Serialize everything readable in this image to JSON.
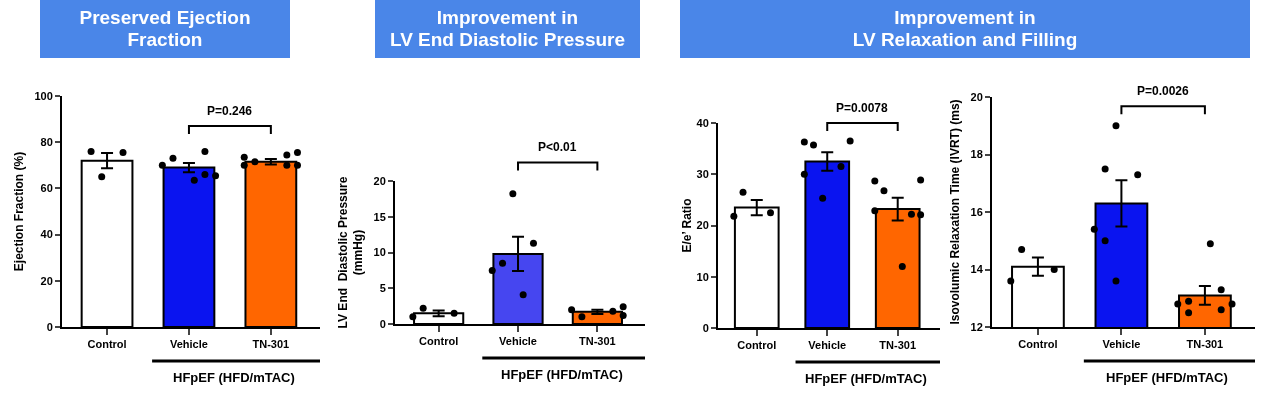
{
  "chart_data": [
    {
      "type": "bar",
      "title": "Preserved Ejection\nFraction",
      "ylabel": "Ejection Fraction (%)",
      "categories": [
        "Control",
        "Vehicle",
        "TN-301"
      ],
      "values": [
        72,
        69,
        71.5
      ],
      "colors": [
        "#ffffff",
        "#0a14f0",
        "#ff6600"
      ],
      "errors": [
        3.3,
        2,
        1.2
      ],
      "series": [
        {
          "type": "scatter",
          "x": [
            "Vehicle",
            "TN-301",
            "TN-301"
          ],
          "values": [
            70,
            73.5,
            70
          ],
          "color": "#000000"
        },
        {
          "type": "scatter",
          "x": [
            "Control",
            "Vehicle",
            "TN-301"
          ],
          "values": [
            76,
            73,
            71.5
          ],
          "color": "#000000"
        },
        {
          "type": "scatter",
          "x": [
            "Control"
          ],
          "values": [
            65
          ],
          "color": "#000000"
        },
        {
          "type": "scatter",
          "x": [
            "Vehicle"
          ],
          "values": [
            63.5
          ],
          "color": "#000000"
        },
        {
          "type": "scatter",
          "x": [
            "Control",
            "Vehicle",
            "Vehicle",
            "TN-301",
            "TN-301"
          ],
          "values": [
            75.5,
            76,
            66,
            74.5,
            70
          ],
          "color": "#000000"
        },
        {
          "type": "scatter",
          "x": [
            "Vehicle",
            "TN-301",
            "TN-301"
          ],
          "values": [
            65.5,
            75.5,
            70
          ],
          "color": "#000000"
        }
      ],
      "ylim": [
        0,
        100
      ],
      "yticks": [
        0,
        20,
        40,
        60,
        80,
        100
      ],
      "annotations": [
        "P=0.246",
        "HFpEF (HFD/mTAC)"
      ],
      "grid": false,
      "marker": "circle"
    },
    {
      "type": "bar",
      "title": "Improvement in\nLV End Diastolic Pressure",
      "ylabel": "LV End  Diastolic Pressure\n(mmHg)",
      "categories": [
        "Control",
        "Vehicle",
        "TN-301"
      ],
      "values": [
        1.5,
        9.8,
        1.7
      ],
      "colors": [
        "#ffffff",
        "#4646f0",
        "#ff6600"
      ],
      "errors": [
        0.4,
        2.4,
        0.3
      ],
      "series": [
        {
          "type": "scatter",
          "x": [
            "Control",
            "Vehicle",
            "TN-301"
          ],
          "values": [
            1.0,
            7.5,
            2.0
          ],
          "color": "#000000"
        },
        {
          "type": "scatter",
          "x": [
            "Control",
            "Vehicle",
            "TN-301"
          ],
          "values": [
            2.2,
            8.5,
            1.0
          ],
          "color": "#000000"
        },
        {
          "type": "scatter",
          "x": [
            "Vehicle"
          ],
          "values": [
            18.2
          ],
          "color": "#000000"
        },
        {
          "type": "scatter",
          "x": [
            "Vehicle"
          ],
          "values": [
            4.1
          ],
          "color": "#000000"
        },
        {
          "type": "scatter",
          "x": [
            "Control",
            "Vehicle",
            "TN-301"
          ],
          "values": [
            1.5,
            11.3,
            1.8
          ],
          "color": "#000000"
        },
        {
          "type": "scatter",
          "x": [
            "TN-301",
            "TN-301"
          ],
          "values": [
            2.4,
            1.2
          ],
          "color": "#000000"
        }
      ],
      "ylim": [
        0,
        20
      ],
      "yticks": [
        0,
        5,
        10,
        15,
        20
      ],
      "annotations": [
        "P<0.01",
        "HFpEF (HFD/mTAC)"
      ],
      "grid": false,
      "marker": "circle"
    },
    {
      "type": "bar",
      "title": "Improvement in\nLV Relaxation and Filling",
      "ylabel": "E/e’ Ratio",
      "categories": [
        "Control",
        "Vehicle",
        "TN-301"
      ],
      "values": [
        23.5,
        32.5,
        23.2
      ],
      "colors": [
        "#ffffff",
        "#0a14f0",
        "#ff6600"
      ],
      "errors": [
        1.5,
        1.8,
        2.2
      ],
      "series": [
        {
          "type": "scatter",
          "x": [
            "Control",
            "Vehicle",
            "Vehicle",
            "TN-301",
            "TN-301"
          ],
          "values": [
            21.8,
            36.3,
            30,
            28.7,
            22.9
          ],
          "color": "#000000"
        },
        {
          "type": "scatter",
          "x": [
            "Control",
            "Vehicle",
            "TN-301"
          ],
          "values": [
            26.5,
            35.7,
            26.8
          ],
          "color": "#000000"
        },
        {
          "type": "scatter",
          "x": [
            "Vehicle"
          ],
          "values": [
            25.3
          ],
          "color": "#000000"
        },
        {
          "type": "scatter",
          "x": [
            "TN-301"
          ],
          "values": [
            12
          ],
          "color": "#000000"
        },
        {
          "type": "scatter",
          "x": [
            "Control",
            "Vehicle",
            "TN-301"
          ],
          "values": [
            22.5,
            31.5,
            22.2
          ],
          "color": "#000000"
        },
        {
          "type": "scatter",
          "x": [
            "Vehicle",
            "TN-301",
            "TN-301"
          ],
          "values": [
            36.5,
            28.9,
            22.1
          ],
          "color": "#000000"
        }
      ],
      "ylim": [
        0,
        40
      ],
      "yticks": [
        0,
        10,
        20,
        30,
        40
      ],
      "annotations": [
        "P=0.0078",
        "HFpEF (HFD/mTAC)"
      ],
      "grid": false,
      "marker": "circle"
    },
    {
      "type": "bar",
      "ylabel": "Isovolumic Relaxation Time (IVRT) (ms)",
      "categories": [
        "Control",
        "Vehicle",
        "TN-301"
      ],
      "values": [
        14.1,
        16.3,
        13.1
      ],
      "colors": [
        "#ffffff",
        "#0a14f0",
        "#ff6600"
      ],
      "errors": [
        0.32,
        0.8,
        0.33
      ],
      "series": [
        {
          "type": "scatter",
          "x": [
            "Control",
            "Vehicle",
            "TN-301"
          ],
          "values": [
            13.6,
            15.4,
            12.8
          ],
          "color": "#000000"
        },
        {
          "type": "scatter",
          "x": [
            "Control",
            "Vehicle",
            "Vehicle",
            "TN-301",
            "TN-301"
          ],
          "values": [
            14.7,
            17.5,
            15.0,
            12.9,
            12.5
          ],
          "color": "#000000"
        },
        {
          "type": "scatter",
          "x": [
            "Vehicle",
            "Vehicle"
          ],
          "values": [
            19.0,
            13.6
          ],
          "color": "#000000"
        },
        {
          "type": "scatter",
          "x": [
            "TN-301"
          ],
          "values": [
            14.9
          ],
          "color": "#000000"
        },
        {
          "type": "scatter",
          "x": [
            "Control",
            "Vehicle",
            "TN-301",
            "TN-301"
          ],
          "values": [
            14.0,
            17.3,
            13.3,
            12.6
          ],
          "color": "#000000"
        },
        {
          "type": "scatter",
          "x": [
            "TN-301"
          ],
          "values": [
            12.8
          ],
          "color": "#000000"
        }
      ],
      "ylim": [
        12,
        20
      ],
      "yticks": [
        12,
        14,
        16,
        18,
        20
      ],
      "annotations": [
        "P=0.0026",
        "HFpEF (HFD/mTAC)"
      ],
      "grid": false,
      "marker": "circle"
    }
  ]
}
